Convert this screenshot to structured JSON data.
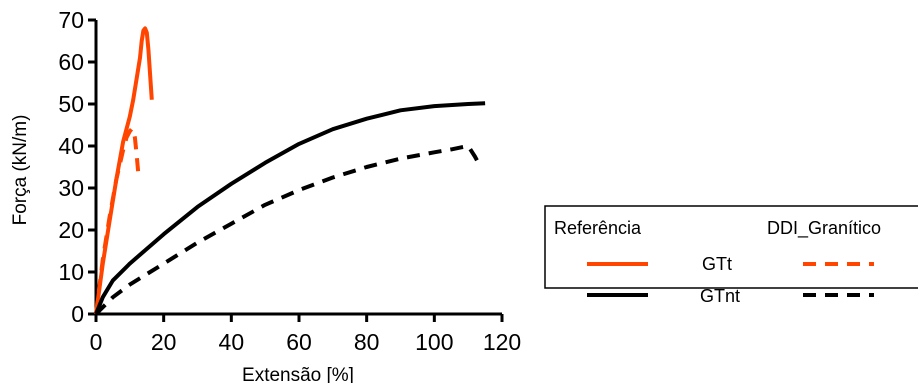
{
  "chart_data": {
    "type": "line",
    "xlabel": "Extensão [%]",
    "ylabel": "Força (kN/m)",
    "xlim": [
      0,
      120
    ],
    "ylim": [
      0,
      70
    ],
    "xticks": [
      "0",
      "20",
      "40",
      "60",
      "80",
      "100",
      "120"
    ],
    "yticks": [
      "0",
      "10",
      "20",
      "30",
      "40",
      "50",
      "60",
      "70"
    ],
    "grid": false,
    "legend": {
      "placement": "right",
      "column_headers": [
        "Referência",
        "DDI_Granítico"
      ],
      "rows": [
        "GTt",
        "GTnt"
      ]
    },
    "series": [
      {
        "name": "GTt",
        "group": "Referência",
        "color": "#FF4500",
        "dash": "solid",
        "x": [
          0,
          2,
          4,
          6,
          8,
          10,
          11,
          12,
          13,
          13.5,
          14,
          14.5,
          15,
          15.5,
          16,
          16.5
        ],
        "y": [
          0,
          12,
          22,
          32,
          41,
          47,
          51,
          56,
          61,
          65,
          67.5,
          68,
          67,
          63,
          57,
          51
        ]
      },
      {
        "name": "GTt",
        "group": "DDI_Granítico",
        "color": "#FF4500",
        "dash": "dashed",
        "x": [
          0,
          2,
          4,
          6,
          8,
          9,
          10,
          10.5,
          11,
          11.5,
          12,
          12.5
        ],
        "y": [
          0,
          13,
          23,
          32,
          39,
          42,
          43.5,
          44,
          44,
          42,
          38,
          33.5
        ]
      },
      {
        "name": "GTnt",
        "group": "Referência",
        "color": "#000000",
        "dash": "solid",
        "x": [
          0,
          2,
          5,
          10,
          20,
          30,
          40,
          50,
          60,
          70,
          80,
          90,
          100,
          110,
          115
        ],
        "y": [
          0,
          4,
          8,
          12,
          19,
          25.5,
          31,
          36,
          40.5,
          44,
          46.5,
          48.5,
          49.5,
          50,
          50.2
        ]
      },
      {
        "name": "GTnt",
        "group": "DDI_Granítico",
        "color": "#000000",
        "dash": "dashed",
        "x": [
          0,
          5,
          10,
          20,
          30,
          40,
          50,
          60,
          70,
          80,
          90,
          100,
          105,
          108,
          110,
          112,
          113
        ],
        "y": [
          0,
          4,
          7,
          12,
          17,
          21.5,
          26,
          29.5,
          32.5,
          35,
          37,
          38.5,
          39.2,
          39.7,
          40,
          37.5,
          36
        ]
      }
    ]
  }
}
